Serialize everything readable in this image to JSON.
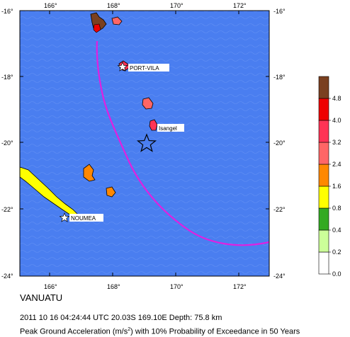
{
  "map": {
    "region_title": "VANUATU",
    "event_info": "2011 10 16 04:24:44 UTC 20.03S 169.10E Depth: 75.8 km",
    "subtitle": {
      "prefix": "Peak Ground Acceleration (m/s",
      "superscript": "2",
      "suffix": ") with 10% Probability of Exceedance in 50 Years"
    },
    "ocean_color": "#4a7ef0",
    "lon_ticks": [
      "166°",
      "168°",
      "170°",
      "172°"
    ],
    "lat_ticks": [
      "-16°",
      "-18°",
      "-20°",
      "-22°",
      "-24°"
    ],
    "cities": [
      {
        "name": "PORT-VILA",
        "icon": "star-icon"
      },
      {
        "name": "Isangel",
        "icon": "none"
      },
      {
        "name": "NOUMEA",
        "icon": "star-icon"
      }
    ],
    "epicenter_icon": "star-outline-icon",
    "trench_color": "#e020e0"
  },
  "legend": {
    "labels": [
      "0.0",
      "0.2",
      "0.4",
      "0.8",
      "1.6",
      "2.4",
      "3.2",
      "4.0",
      "4.8"
    ],
    "colors": [
      "#ffffff",
      "#ccff99",
      "#33aa22",
      "#ffff00",
      "#ff8800",
      "#ff6666",
      "#ff3355",
      "#ee0000",
      "#7a4020"
    ]
  }
}
